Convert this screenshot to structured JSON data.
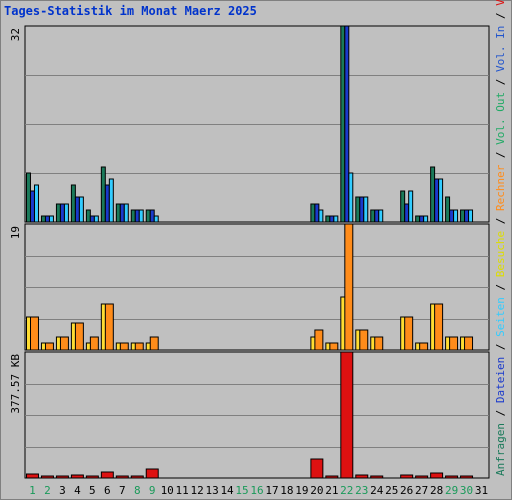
{
  "chart_data": {
    "type": "bar",
    "title": "Tages-Statistik im Monat Maerz 2025",
    "days": [
      "1",
      "2",
      "3",
      "4",
      "5",
      "6",
      "7",
      "8",
      "9",
      "10",
      "11",
      "12",
      "13",
      "14",
      "15",
      "16",
      "17",
      "18",
      "19",
      "20",
      "21",
      "22",
      "23",
      "24",
      "25",
      "26",
      "27",
      "28",
      "29",
      "30",
      "31"
    ],
    "weekend_days": [
      "1",
      "2",
      "8",
      "9",
      "15",
      "16",
      "22",
      "23",
      "29",
      "30"
    ],
    "panels": [
      {
        "id": "top",
        "max_label": "32",
        "ymax": 32,
        "series": [
          {
            "name": "Anfragen",
            "color": "#1a7a5a",
            "values": [
              8,
              1,
              3,
              6,
              2,
              9,
              3,
              2,
              2,
              0,
              0,
              0,
              0,
              0,
              0,
              0,
              0,
              0,
              0,
              3,
              1,
              32,
              4,
              2,
              0,
              5,
              1,
              9,
              4,
              2,
              0
            ]
          },
          {
            "name": "Dateien",
            "color": "#1a3acc",
            "values": [
              5,
              1,
              3,
              4,
              1,
              6,
              3,
              2,
              2,
              0,
              0,
              0,
              0,
              0,
              0,
              0,
              0,
              0,
              0,
              3,
              1,
              32,
              4,
              2,
              0,
              3,
              1,
              7,
              2,
              2,
              0
            ]
          },
          {
            "name": "Seiten",
            "color": "#33ccff",
            "values": [
              6,
              1,
              3,
              4,
              1,
              7,
              3,
              2,
              1,
              0,
              0,
              0,
              0,
              0,
              0,
              0,
              0,
              0,
              0,
              2,
              1,
              8,
              4,
              2,
              0,
              5,
              1,
              7,
              2,
              2,
              0
            ]
          }
        ]
      },
      {
        "id": "mid",
        "max_label": "19",
        "ymax": 19,
        "series": [
          {
            "name": "Besuche",
            "color": "#ffdd33",
            "values": [
              5,
              1,
              2,
              4,
              1,
              7,
              1,
              1,
              1,
              0,
              0,
              0,
              0,
              0,
              0,
              0,
              0,
              0,
              0,
              2,
              1,
              8,
              3,
              2,
              0,
              5,
              1,
              7,
              2,
              2,
              0
            ]
          },
          {
            "name": "Rechner",
            "color": "#ff8c1a",
            "values": [
              5,
              1,
              2,
              4,
              2,
              7,
              1,
              1,
              2,
              0,
              0,
              0,
              0,
              0,
              0,
              0,
              0,
              0,
              0,
              3,
              1,
              19,
              3,
              2,
              0,
              5,
              1,
              7,
              2,
              2,
              0
            ]
          }
        ]
      },
      {
        "id": "bot",
        "max_label": "377.57 KB",
        "ymax": 377.57,
        "series": [
          {
            "name": "Volumen",
            "color": "#dd1111",
            "values": [
              12,
              3,
              3,
              10,
              6,
              18,
              5,
              4,
              27,
              0,
              0,
              0,
              0,
              0,
              0,
              0,
              0,
              0,
              0,
              58,
              3,
              377.57,
              9,
              7,
              0,
              8,
              4,
              14,
              7,
              4,
              0
            ]
          }
        ]
      }
    ],
    "right_labels": [
      {
        "text": "Anfragen",
        "color": "#1a7a5a"
      },
      {
        "text": "Dateien",
        "color": "#1a3acc"
      },
      {
        "text": "Seiten",
        "color": "#33ccff"
      },
      {
        "text": "Besuche",
        "color": "#dddd00"
      },
      {
        "text": "Rechner",
        "color": "#ff8c1a"
      },
      {
        "text": "Vol. Out",
        "color": "#22aa66"
      },
      {
        "text": "Vol. In",
        "color": "#2255cc"
      },
      {
        "text": "Volumen",
        "color": "#dd1111"
      }
    ],
    "grid": true
  }
}
